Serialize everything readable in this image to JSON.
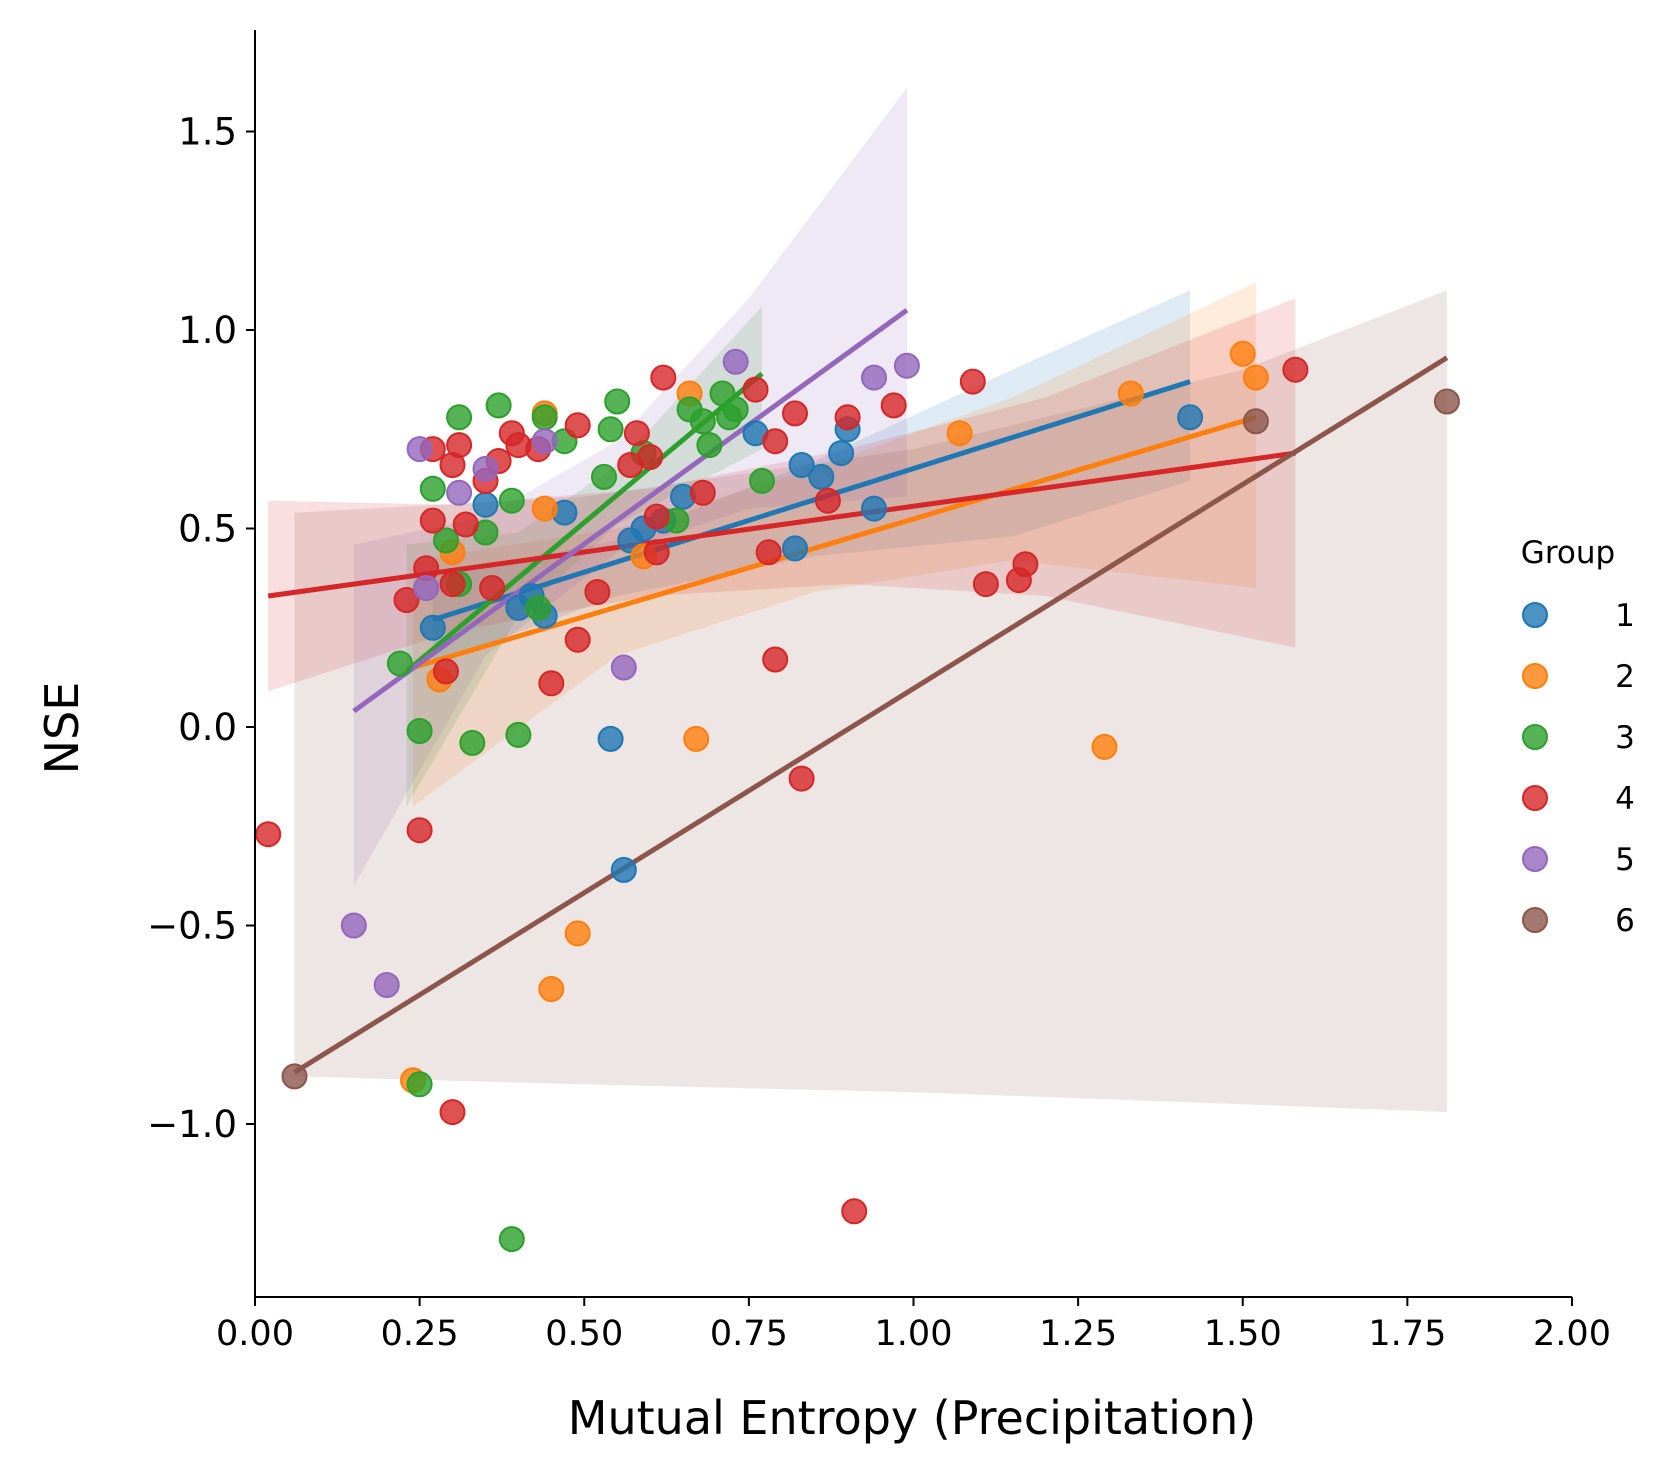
{
  "chart_data": {
    "type": "scatter",
    "title": "",
    "xlabel": "Mutual Entropy (Precipitation)",
    "ylabel": "NSE",
    "xlim": [
      0.0,
      2.0
    ],
    "ylim": [
      -1.43,
      1.75
    ],
    "xticks": [
      0.0,
      0.25,
      0.5,
      0.75,
      1.0,
      1.25,
      1.5,
      1.75,
      2.0
    ],
    "xtick_labels": [
      "0.00",
      "0.25",
      "0.50",
      "0.75",
      "1.00",
      "1.25",
      "1.50",
      "1.75",
      "2.00"
    ],
    "yticks": [
      -1.0,
      -0.5,
      0.0,
      0.5,
      1.0,
      1.5
    ],
    "ytick_labels": [
      "−1.0",
      "−0.5",
      "0.0",
      "0.5",
      "1.0",
      "1.5"
    ],
    "grid": false,
    "legend": {
      "title": "Group",
      "placement": "right"
    },
    "series": [
      {
        "name": "1",
        "color": "#1f77b4",
        "points": [
          [
            0.27,
            0.25
          ],
          [
            0.35,
            0.56
          ],
          [
            0.4,
            0.3
          ],
          [
            0.42,
            0.33
          ],
          [
            0.44,
            0.28
          ],
          [
            0.47,
            0.54
          ],
          [
            0.54,
            -0.03
          ],
          [
            0.56,
            -0.36
          ],
          [
            0.57,
            0.47
          ],
          [
            0.59,
            0.5
          ],
          [
            0.62,
            0.52
          ],
          [
            0.65,
            0.58
          ],
          [
            0.76,
            0.74
          ],
          [
            0.82,
            0.45
          ],
          [
            0.83,
            0.66
          ],
          [
            0.86,
            0.63
          ],
          [
            0.89,
            0.69
          ],
          [
            0.9,
            0.75
          ],
          [
            0.94,
            0.55
          ],
          [
            1.42,
            0.78
          ]
        ],
        "fit": {
          "x": [
            0.27,
            1.42
          ],
          "y": [
            0.27,
            0.87
          ]
        },
        "band": {
          "x": [
            0.27,
            0.55,
            0.85,
            1.15,
            1.42
          ],
          "upper": [
            0.38,
            0.47,
            0.67,
            0.9,
            1.1
          ],
          "lower": [
            0.16,
            0.33,
            0.43,
            0.48,
            0.62
          ]
        }
      },
      {
        "name": "2",
        "color": "#ff7f0e",
        "points": [
          [
            0.24,
            -0.89
          ],
          [
            0.28,
            0.12
          ],
          [
            0.3,
            0.44
          ],
          [
            0.44,
            0.55
          ],
          [
            0.44,
            0.79
          ],
          [
            0.45,
            -0.66
          ],
          [
            0.49,
            -0.52
          ],
          [
            0.59,
            0.43
          ],
          [
            0.66,
            0.84
          ],
          [
            0.67,
            -0.03
          ],
          [
            1.07,
            0.74
          ],
          [
            1.29,
            -0.05
          ],
          [
            1.33,
            0.84
          ],
          [
            1.5,
            0.94
          ],
          [
            1.52,
            0.88
          ]
        ],
        "fit": {
          "x": [
            0.24,
            1.52
          ],
          "y": [
            0.15,
            0.78
          ]
        },
        "band": {
          "x": [
            0.24,
            0.55,
            0.85,
            1.15,
            1.52
          ],
          "upper": [
            0.42,
            0.5,
            0.65,
            0.83,
            1.12
          ],
          "lower": [
            -0.2,
            0.18,
            0.34,
            0.42,
            0.35
          ]
        }
      },
      {
        "name": "3",
        "color": "#2ca02c",
        "points": [
          [
            0.22,
            0.16
          ],
          [
            0.25,
            -0.01
          ],
          [
            0.25,
            -0.9
          ],
          [
            0.27,
            0.6
          ],
          [
            0.29,
            0.47
          ],
          [
            0.31,
            0.78
          ],
          [
            0.31,
            0.36
          ],
          [
            0.33,
            -0.04
          ],
          [
            0.35,
            0.49
          ],
          [
            0.37,
            0.81
          ],
          [
            0.39,
            0.57
          ],
          [
            0.39,
            -1.29
          ],
          [
            0.4,
            -0.02
          ],
          [
            0.43,
            0.3
          ],
          [
            0.44,
            0.78
          ],
          [
            0.47,
            0.72
          ],
          [
            0.53,
            0.63
          ],
          [
            0.54,
            0.75
          ],
          [
            0.55,
            0.82
          ],
          [
            0.59,
            0.69
          ],
          [
            0.64,
            0.52
          ],
          [
            0.66,
            0.8
          ],
          [
            0.68,
            0.77
          ],
          [
            0.69,
            0.71
          ],
          [
            0.71,
            0.84
          ],
          [
            0.72,
            0.78
          ],
          [
            0.73,
            0.8
          ],
          [
            0.77,
            0.62
          ]
        ],
        "fit": {
          "x": [
            0.23,
            0.77
          ],
          "y": [
            0.14,
            0.89
          ]
        },
        "band": {
          "x": [
            0.23,
            0.4,
            0.55,
            0.77
          ],
          "upper": [
            0.46,
            0.49,
            0.66,
            1.06
          ],
          "lower": [
            -0.2,
            0.28,
            0.51,
            0.7
          ]
        }
      },
      {
        "name": "4",
        "color": "#d62728",
        "points": [
          [
            0.02,
            -0.27
          ],
          [
            0.23,
            0.32
          ],
          [
            0.25,
            -0.26
          ],
          [
            0.26,
            0.4
          ],
          [
            0.27,
            0.52
          ],
          [
            0.27,
            0.7
          ],
          [
            0.29,
            0.14
          ],
          [
            0.3,
            0.36
          ],
          [
            0.3,
            0.66
          ],
          [
            0.3,
            -0.97
          ],
          [
            0.31,
            0.71
          ],
          [
            0.32,
            0.51
          ],
          [
            0.35,
            0.62
          ],
          [
            0.36,
            0.35
          ],
          [
            0.37,
            0.67
          ],
          [
            0.39,
            0.74
          ],
          [
            0.4,
            0.71
          ],
          [
            0.43,
            0.7
          ],
          [
            0.45,
            0.11
          ],
          [
            0.49,
            0.22
          ],
          [
            0.49,
            0.76
          ],
          [
            0.52,
            0.34
          ],
          [
            0.57,
            0.66
          ],
          [
            0.58,
            0.74
          ],
          [
            0.6,
            0.68
          ],
          [
            0.61,
            0.53
          ],
          [
            0.61,
            0.44
          ],
          [
            0.62,
            0.88
          ],
          [
            0.68,
            0.59
          ],
          [
            0.76,
            0.85
          ],
          [
            0.78,
            0.44
          ],
          [
            0.79,
            0.17
          ],
          [
            0.79,
            0.72
          ],
          [
            0.82,
            0.79
          ],
          [
            0.83,
            -0.13
          ],
          [
            0.87,
            0.57
          ],
          [
            0.9,
            0.78
          ],
          [
            0.91,
            -1.22
          ],
          [
            0.97,
            0.81
          ],
          [
            1.09,
            0.87
          ],
          [
            1.11,
            0.36
          ],
          [
            1.16,
            0.37
          ],
          [
            1.17,
            0.41
          ],
          [
            1.58,
            0.9
          ]
        ],
        "fit": {
          "x": [
            0.02,
            1.58
          ],
          "y": [
            0.33,
            0.69
          ]
        },
        "band": {
          "x": [
            0.02,
            0.3,
            0.6,
            0.9,
            1.2,
            1.58
          ],
          "upper": [
            0.57,
            0.56,
            0.6,
            0.7,
            0.83,
            1.08
          ],
          "lower": [
            0.09,
            0.24,
            0.33,
            0.36,
            0.33,
            0.2
          ]
        }
      },
      {
        "name": "5",
        "color": "#9467bd",
        "points": [
          [
            0.15,
            -0.5
          ],
          [
            0.2,
            -0.65
          ],
          [
            0.25,
            0.7
          ],
          [
            0.26,
            0.35
          ],
          [
            0.31,
            0.59
          ],
          [
            0.35,
            0.65
          ],
          [
            0.44,
            0.72
          ],
          [
            0.56,
            0.15
          ],
          [
            0.73,
            0.92
          ],
          [
            0.94,
            0.88
          ],
          [
            0.99,
            0.91
          ]
        ],
        "fit": {
          "x": [
            0.15,
            0.99
          ],
          "y": [
            0.04,
            1.05
          ]
        },
        "band": {
          "x": [
            0.15,
            0.35,
            0.55,
            0.75,
            0.99
          ],
          "upper": [
            0.46,
            0.53,
            0.72,
            1.08,
            1.61
          ],
          "lower": [
            -0.4,
            0.18,
            0.44,
            0.55,
            0.58
          ]
        }
      },
      {
        "name": "6",
        "color": "#8c564b",
        "points": [
          [
            0.06,
            -0.88
          ],
          [
            1.52,
            0.77
          ],
          [
            1.81,
            0.82
          ]
        ],
        "fit": {
          "x": [
            0.06,
            1.81
          ],
          "y": [
            -0.87,
            0.93
          ]
        },
        "band": {
          "x": [
            0.06,
            0.5,
            1.0,
            1.5,
            1.81
          ],
          "upper": [
            0.54,
            0.58,
            0.7,
            0.9,
            1.1
          ],
          "lower": [
            -0.88,
            -0.9,
            -0.92,
            -0.95,
            -0.97
          ]
        }
      }
    ]
  }
}
